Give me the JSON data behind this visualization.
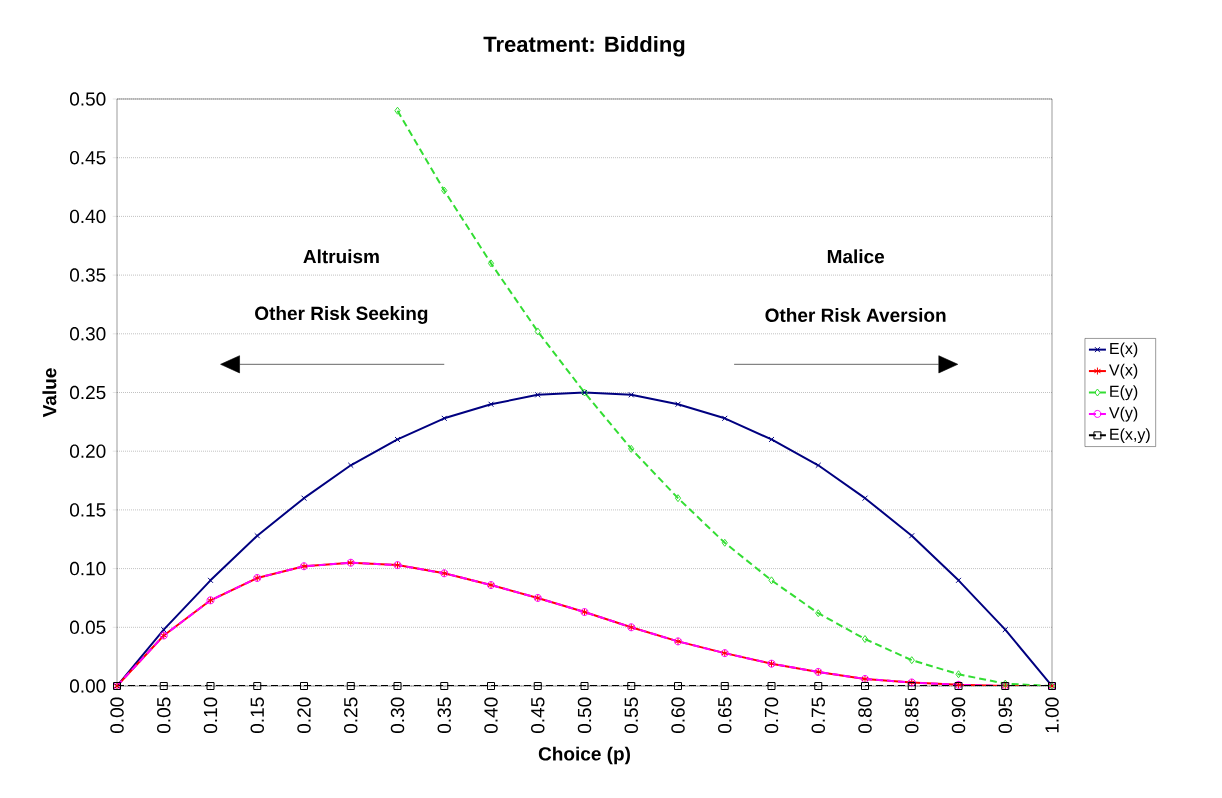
{
  "chart_data": {
    "type": "line",
    "title": "Treatment:  Bidding",
    "xlabel": "Choice (p)",
    "ylabel": "Value",
    "x": [
      0,
      0.05,
      0.1,
      0.15,
      0.2,
      0.25,
      0.3,
      0.35,
      0.4,
      0.45,
      0.5,
      0.55,
      0.6,
      0.65,
      0.7,
      0.75,
      0.8,
      0.85,
      0.9,
      0.95,
      1
    ],
    "series": [
      {
        "name": "E(x)",
        "color": "#000080",
        "marker": "cross",
        "line_style": "solid",
        "values": [
          0,
          0.048,
          0.09,
          0.128,
          0.16,
          0.188,
          0.21,
          0.228,
          0.24,
          0.248,
          0.25,
          0.248,
          0.24,
          0.228,
          0.21,
          0.188,
          0.16,
          0.128,
          0.09,
          0.048,
          0
        ]
      },
      {
        "name": "V(x)",
        "color": "#ff0000",
        "marker": "cross",
        "line_style": "solid",
        "values": [
          0,
          0.043,
          0.073,
          0.092,
          0.102,
          0.105,
          0.103,
          0.096,
          0.086,
          0.075,
          0.063,
          0.05,
          0.038,
          0.028,
          0.019,
          0.012,
          0.006,
          0.003,
          0.001,
          0,
          0
        ]
      },
      {
        "name": "E(y)",
        "color": "#33dd33",
        "marker": "diamond",
        "line_style": "dashed",
        "values": [
          null,
          null,
          null,
          null,
          null,
          null,
          0.49,
          0.422,
          0.36,
          0.302,
          0.25,
          0.202,
          0.16,
          0.122,
          0.09,
          0.062,
          0.04,
          0.022,
          0.01,
          0.002,
          0
        ]
      },
      {
        "name": "V(y)",
        "color": "#ff00ff",
        "marker": "circle",
        "line_style": "dashed",
        "values": [
          0,
          0.043,
          0.073,
          0.092,
          0.102,
          0.105,
          0.103,
          0.096,
          0.086,
          0.075,
          0.063,
          0.05,
          0.038,
          0.028,
          0.019,
          0.012,
          0.006,
          0.003,
          0.001,
          0,
          0
        ]
      },
      {
        "name": "E(x,y)",
        "color": "#000000",
        "marker": "square",
        "line_style": "dashed",
        "values": [
          0,
          0,
          0,
          0,
          0,
          0,
          0,
          0,
          0,
          0,
          0,
          0,
          0,
          0,
          0,
          0,
          0,
          0,
          0,
          0,
          0
        ]
      }
    ],
    "xlim": [
      0,
      1
    ],
    "ylim": [
      0,
      0.5
    ],
    "xticks": [
      {
        "value": 0,
        "label": "0.00"
      },
      {
        "value": 0.05,
        "label": "0.05"
      },
      {
        "value": 0.1,
        "label": "0.10"
      },
      {
        "value": 0.15,
        "label": "0.15"
      },
      {
        "value": 0.2,
        "label": "0.20"
      },
      {
        "value": 0.25,
        "label": "0.25"
      },
      {
        "value": 0.3,
        "label": "0.30"
      },
      {
        "value": 0.35,
        "label": "0.35"
      },
      {
        "value": 0.4,
        "label": "0.40"
      },
      {
        "value": 0.45,
        "label": "0.45"
      },
      {
        "value": 0.5,
        "label": "0.50"
      },
      {
        "value": 0.55,
        "label": "0.55"
      },
      {
        "value": 0.6,
        "label": "0.60"
      },
      {
        "value": 0.65,
        "label": "0.65"
      },
      {
        "value": 0.7,
        "label": "0.70"
      },
      {
        "value": 0.75,
        "label": "0.75"
      },
      {
        "value": 0.8,
        "label": "0.80"
      },
      {
        "value": 0.85,
        "label": "0.85"
      },
      {
        "value": 0.9,
        "label": "0.90"
      },
      {
        "value": 0.95,
        "label": "0.95"
      },
      {
        "value": 1,
        "label": "1.00"
      }
    ],
    "yticks": [
      {
        "value": 0,
        "label": "0.00"
      },
      {
        "value": 0.05,
        "label": "0.05"
      },
      {
        "value": 0.1,
        "label": "0.10"
      },
      {
        "value": 0.15,
        "label": "0.15"
      },
      {
        "value": 0.2,
        "label": "0.20"
      },
      {
        "value": 0.25,
        "label": "0.25"
      },
      {
        "value": 0.3,
        "label": "0.30"
      },
      {
        "value": 0.35,
        "label": "0.35"
      },
      {
        "value": 0.4,
        "label": "0.40"
      },
      {
        "value": 0.45,
        "label": "0.45"
      },
      {
        "value": 0.5,
        "label": "0.50"
      }
    ],
    "annotations": [
      "Altruism",
      "Other Risk Seeking",
      "Malice",
      "Other Risk Aversion"
    ],
    "grid": "y",
    "legend": "right"
  }
}
